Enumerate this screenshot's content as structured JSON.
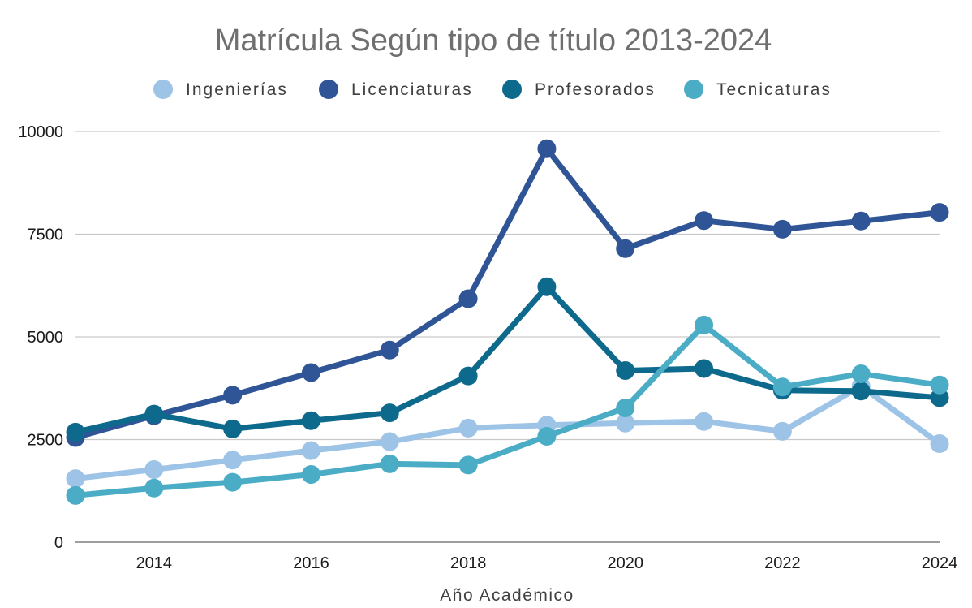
{
  "chart_data": {
    "type": "line",
    "title": "Matrícula Según tipo de título 2013-2024",
    "xlabel": "Año Académico",
    "ylabel": "",
    "x": [
      2013,
      2014,
      2015,
      2016,
      2017,
      2018,
      2019,
      2020,
      2021,
      2022,
      2023,
      2024
    ],
    "x_ticks": [
      "2014",
      "2016",
      "2018",
      "2020",
      "2022",
      "2024"
    ],
    "xlim": [
      2013,
      2024
    ],
    "ylim": [
      0,
      10000
    ],
    "y_ticks": [
      "0",
      "2500",
      "5000",
      "7500",
      "10000"
    ],
    "grid": "horizontal",
    "legend_position": "top",
    "series": [
      {
        "name": "Ingenierías",
        "color": "#9dc3e6",
        "values": [
          1550,
          1770,
          2000,
          2230,
          2450,
          2780,
          2850,
          2900,
          2940,
          2700,
          3800,
          2400
        ]
      },
      {
        "name": "Licenciaturas",
        "color": "#2f5597",
        "values": [
          2550,
          3080,
          3580,
          4130,
          4680,
          5930,
          9580,
          7150,
          7830,
          7620,
          7820,
          8030
        ]
      },
      {
        "name": "Profesorados",
        "color": "#0e6a8c",
        "values": [
          2680,
          3120,
          2760,
          2960,
          3150,
          4050,
          6220,
          4180,
          4230,
          3700,
          3680,
          3520
        ]
      },
      {
        "name": "Tecnicaturas",
        "color": "#4bacc6",
        "values": [
          1140,
          1320,
          1460,
          1650,
          1910,
          1880,
          2580,
          3270,
          5290,
          3780,
          4100,
          3830
        ]
      }
    ]
  }
}
